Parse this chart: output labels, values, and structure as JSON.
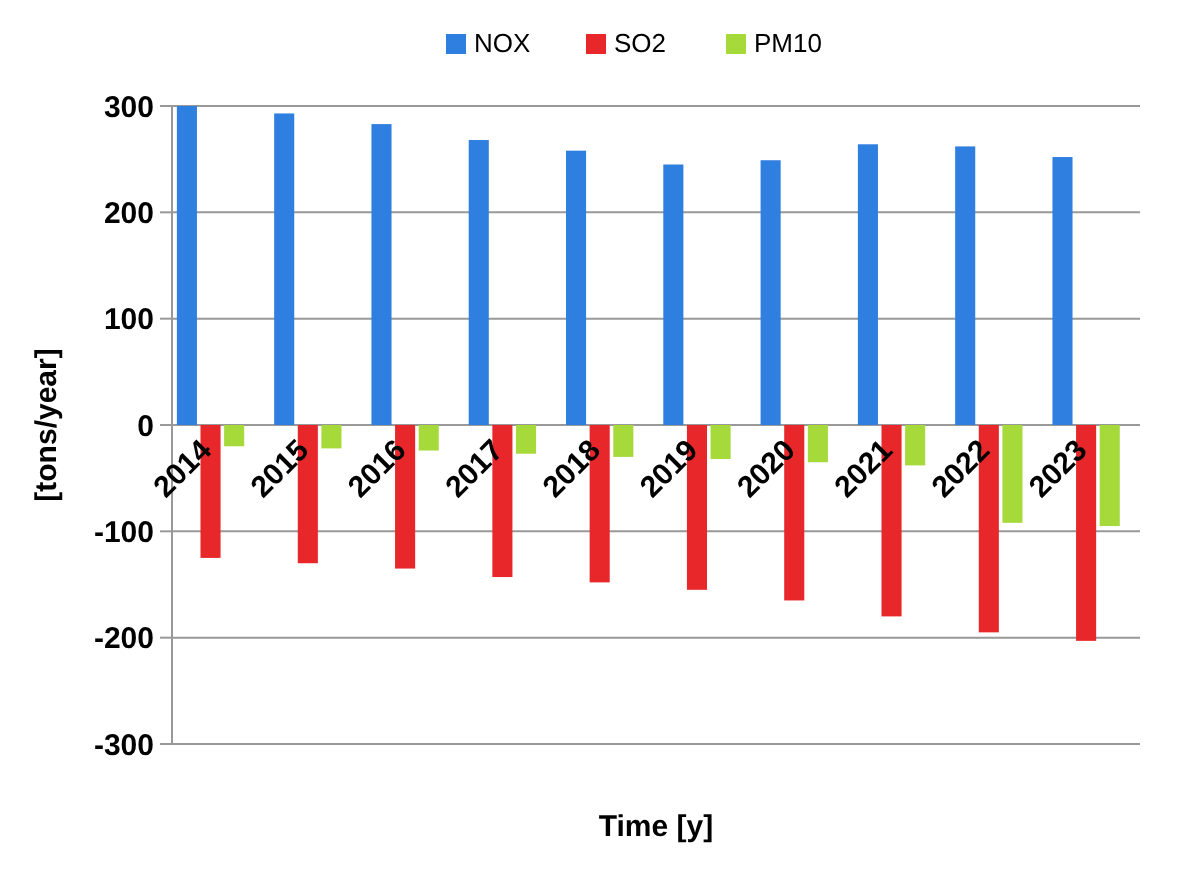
{
  "chart_data": {
    "type": "bar",
    "xlabel": "Time [y]",
    "ylabel": "[tons/year]",
    "categories": [
      "2014",
      "2015",
      "2016",
      "2017",
      "2018",
      "2019",
      "2020",
      "2021",
      "2022",
      "2023"
    ],
    "series": [
      {
        "name": "NOX",
        "color": "#2f7fe0",
        "values": [
          300,
          293,
          283,
          268,
          258,
          245,
          249,
          264,
          262,
          252
        ]
      },
      {
        "name": "SO2",
        "color": "#e8272b",
        "values": [
          -125,
          -130,
          -135,
          -143,
          -148,
          -155,
          -165,
          -180,
          -195,
          -203
        ]
      },
      {
        "name": "PM10",
        "color": "#a6d93a",
        "values": [
          -20,
          -22,
          -24,
          -27,
          -30,
          -32,
          -35,
          -38,
          -92,
          -95
        ]
      }
    ],
    "ylim": [
      -300,
      300
    ],
    "yticks": [
      -300,
      -200,
      -100,
      0,
      100,
      200,
      300
    ],
    "grid": "y",
    "legend": "top"
  }
}
